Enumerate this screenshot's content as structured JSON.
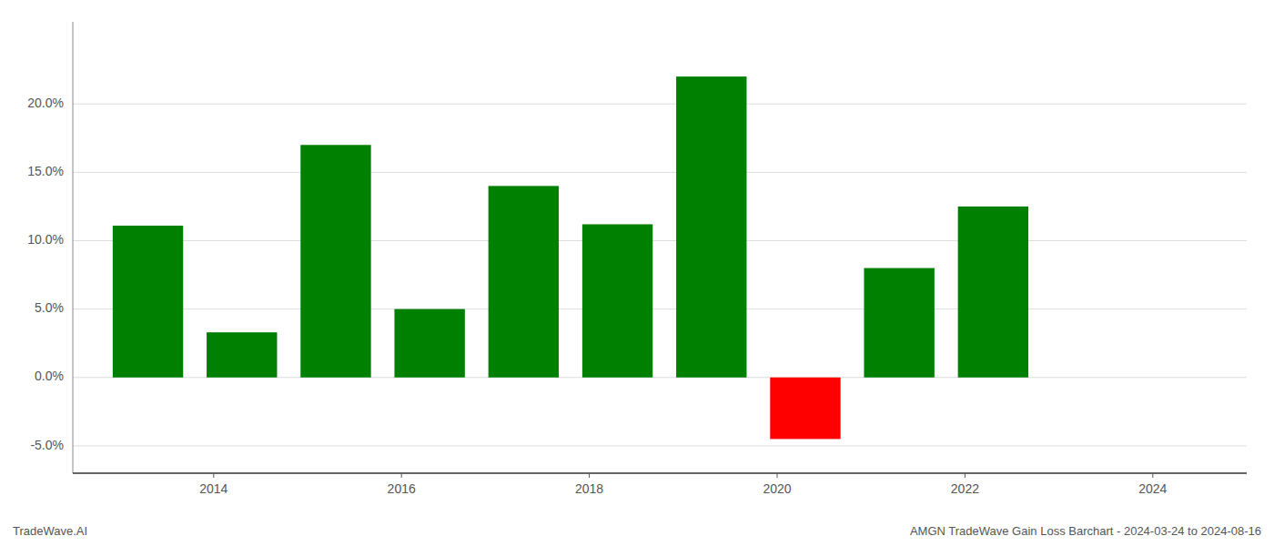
{
  "chart_data": {
    "type": "bar",
    "title": "AMGN TradeWave Gain Loss Barchart - 2024-03-24 to 2024-08-16",
    "annotations": [
      "TradeWave.AI"
    ],
    "x": [
      2013.3,
      2014.3,
      2015.3,
      2016.3,
      2017.3,
      2018.3,
      2019.3,
      2020.3,
      2021.3,
      2022.3
    ],
    "values": [
      11.1,
      3.3,
      17.0,
      5.0,
      14.0,
      11.2,
      22.0,
      -4.5,
      8.0,
      12.5
    ],
    "colors": [
      "#008000",
      "#008000",
      "#008000",
      "#008000",
      "#008000",
      "#008000",
      "#008000",
      "#ff0000",
      "#008000",
      "#008000"
    ],
    "xlim": [
      2012.5,
      2025.0
    ],
    "xticks": [
      2014,
      2016,
      2018,
      2020,
      2022,
      2024
    ],
    "ylim": [
      -7,
      26
    ],
    "yticks": [
      {
        "value": -5.0,
        "label": "-5.0%"
      },
      {
        "value": 0.0,
        "label": "0.0%"
      },
      {
        "value": 5.0,
        "label": "5.0%"
      },
      {
        "value": 10.0,
        "label": "10.0%"
      },
      {
        "value": 15.0,
        "label": "15.0%"
      },
      {
        "value": 20.0,
        "label": "20.0%"
      }
    ],
    "grid": true
  }
}
